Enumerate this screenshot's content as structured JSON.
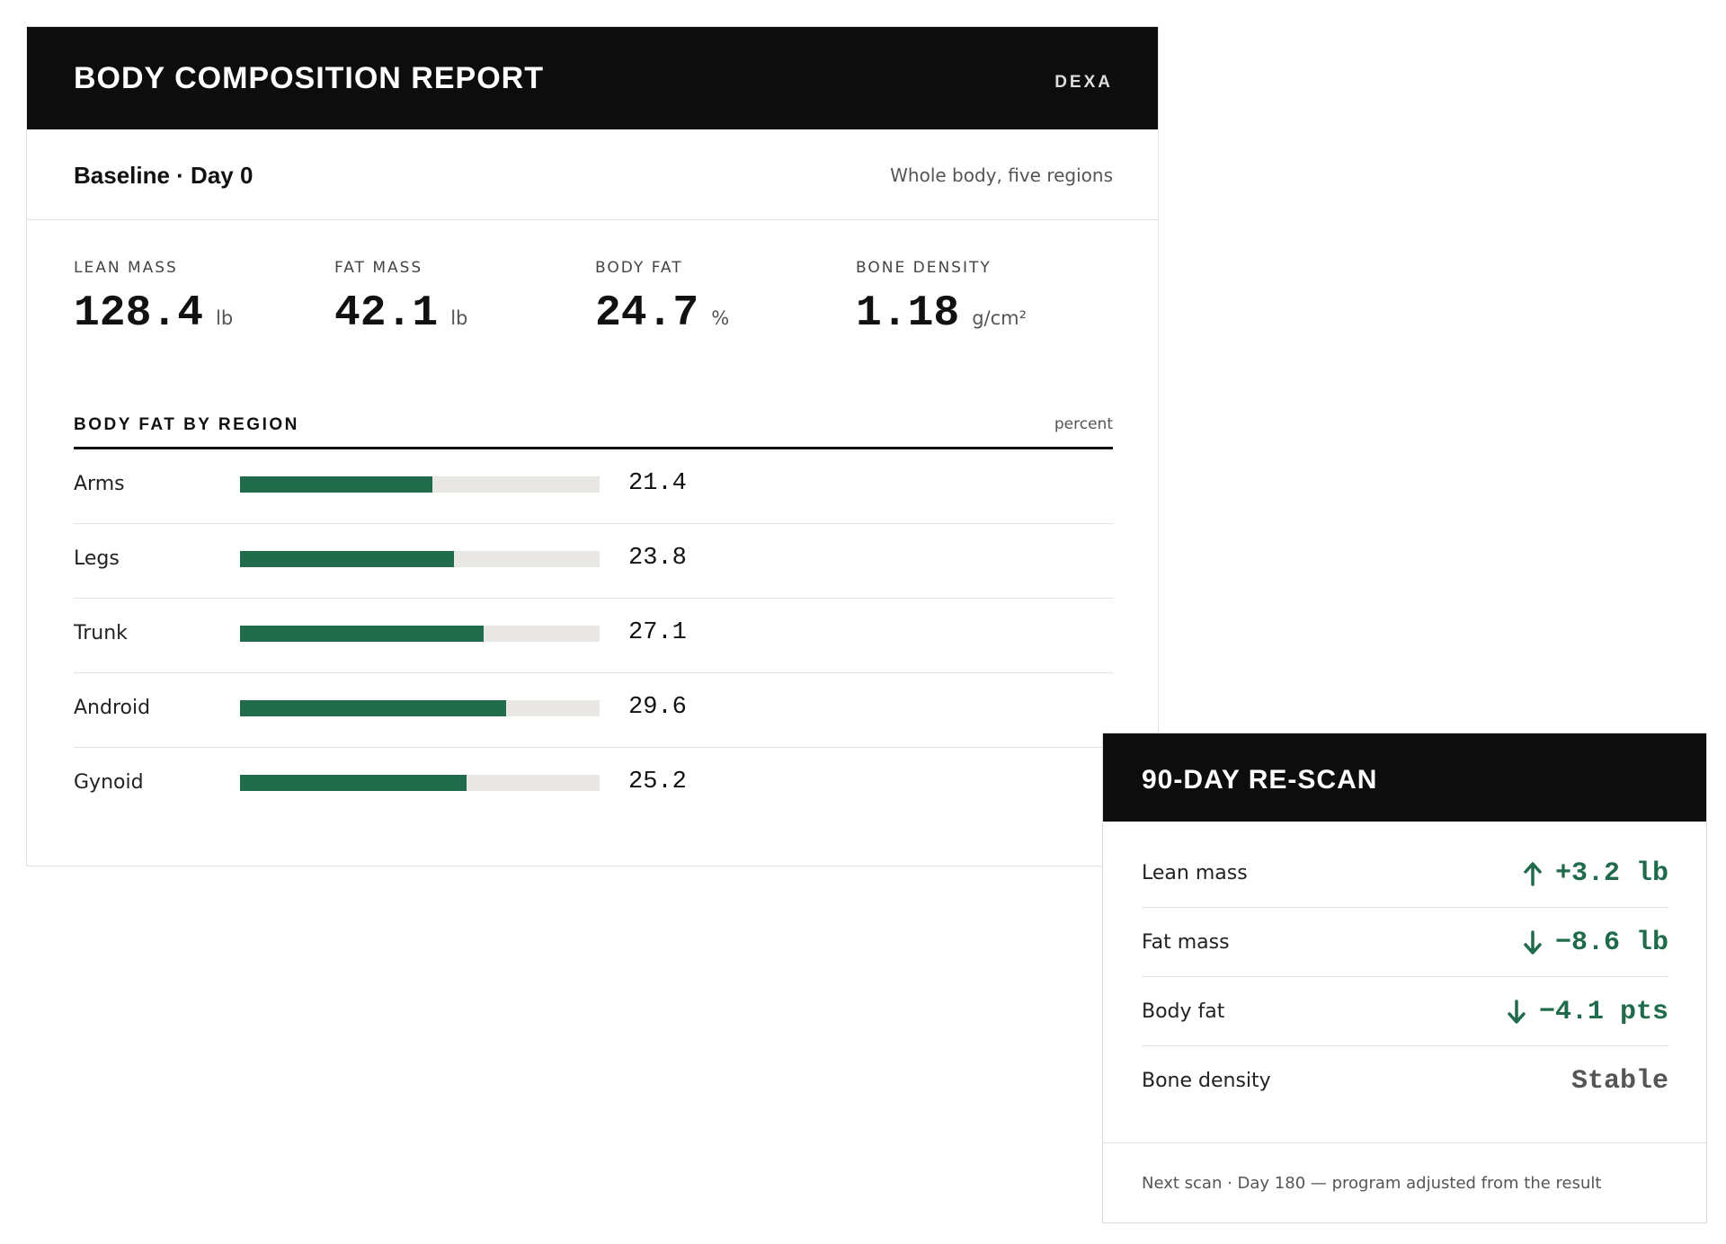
{
  "report": {
    "title": "BODY COMPOSITION REPORT",
    "method": "DEXA",
    "scan_label": "Baseline · Day 0",
    "scan_scope": "Whole body, five regions",
    "metrics": [
      {
        "label": "LEAN MASS",
        "value": "128.4",
        "unit": "lb"
      },
      {
        "label": "FAT MASS",
        "value": "42.1",
        "unit": "lb"
      },
      {
        "label": "BODY FAT",
        "value": "24.7",
        "unit": "%"
      },
      {
        "label": "BONE DENSITY",
        "value": "1.18",
        "unit": "g/cm²"
      }
    ],
    "region_section": {
      "title": "BODY FAT BY REGION",
      "unit": "percent",
      "scale_max": 40,
      "regions": [
        {
          "name": "Arms",
          "value": "21.4"
        },
        {
          "name": "Legs",
          "value": "23.8"
        },
        {
          "name": "Trunk",
          "value": "27.1"
        },
        {
          "name": "Android",
          "value": "29.6"
        },
        {
          "name": "Gynoid",
          "value": "25.2"
        }
      ]
    }
  },
  "rescan": {
    "title": "90-DAY RE-SCAN",
    "changes": [
      {
        "name": "Lean mass",
        "value": "+3.2 lb",
        "direction": "up",
        "tone": "good"
      },
      {
        "name": "Fat mass",
        "value": "−8.6 lb",
        "direction": "down",
        "tone": "good"
      },
      {
        "name": "Body fat",
        "value": "−4.1 pts",
        "direction": "down",
        "tone": "good"
      },
      {
        "name": "Bone density",
        "value": "Stable",
        "direction": "none",
        "tone": "neutral"
      }
    ],
    "footer": "Next scan · Day 180 — program adjusted from the result"
  },
  "colors": {
    "header_bg": "#0d0d0d",
    "accent_green": "#1f6b4c",
    "bar_track": "#e9e7e4"
  },
  "icons": {
    "up": "arrow-up-icon",
    "down": "arrow-down-icon"
  }
}
